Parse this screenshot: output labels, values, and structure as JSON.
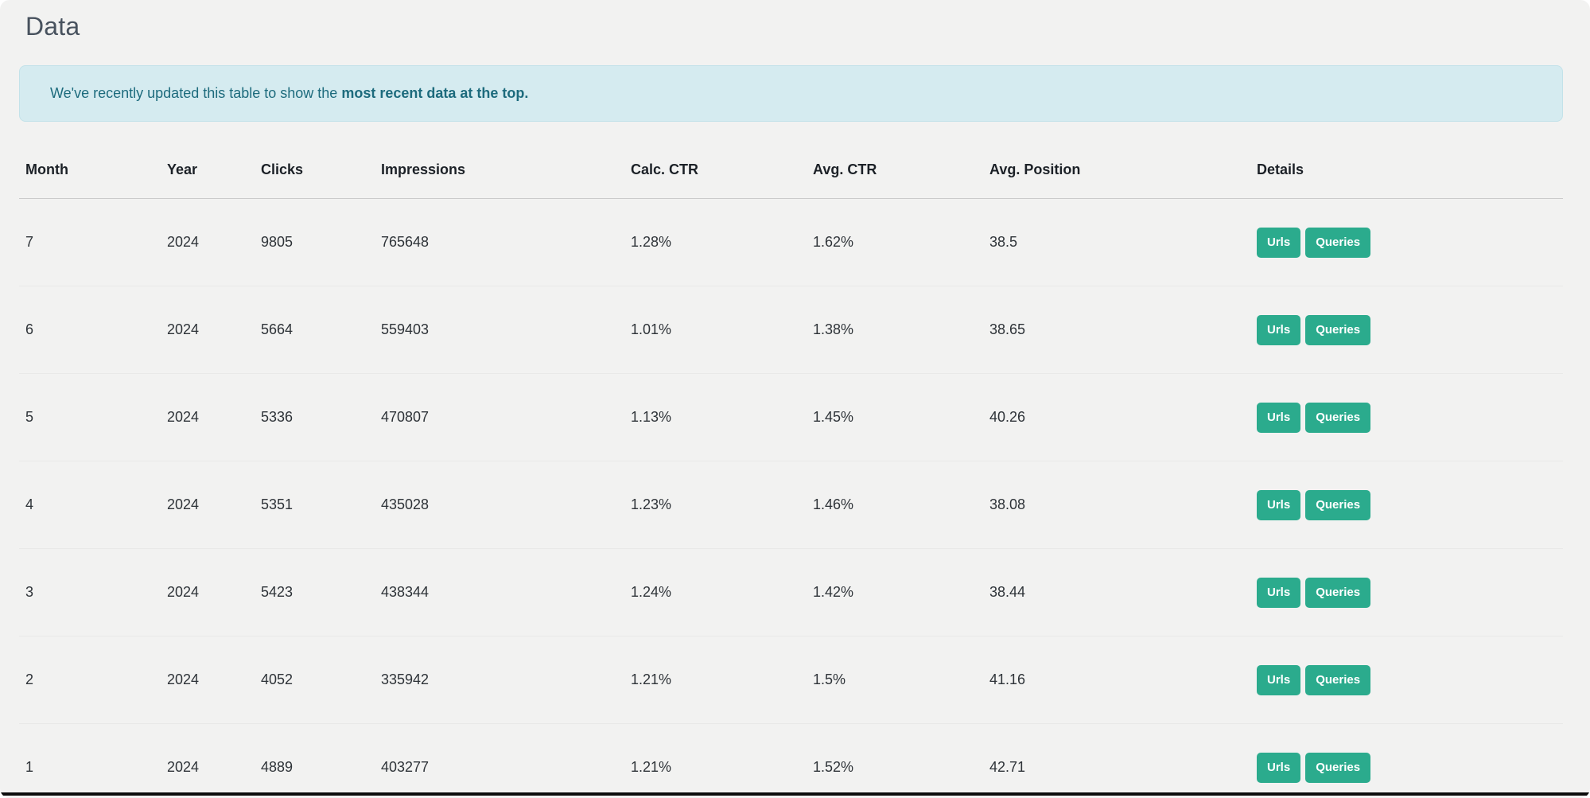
{
  "page": {
    "title": "Data",
    "background_color": "#f2f2f1"
  },
  "banner": {
    "text_normal": "We've recently updated this table to show the ",
    "text_bold": "most recent data at the top.",
    "background_color": "#d5ebf0",
    "border_color": "#c3e2e9",
    "text_color": "#1d6b7d"
  },
  "table": {
    "columns": [
      {
        "key": "month",
        "label": "Month"
      },
      {
        "key": "year",
        "label": "Year"
      },
      {
        "key": "clicks",
        "label": "Clicks"
      },
      {
        "key": "impressions",
        "label": "Impressions"
      },
      {
        "key": "calc_ctr",
        "label": "Calc. CTR"
      },
      {
        "key": "avg_ctr",
        "label": "Avg. CTR"
      },
      {
        "key": "avg_position",
        "label": "Avg. Position"
      },
      {
        "key": "details",
        "label": "Details"
      }
    ],
    "rows": [
      {
        "month": "7",
        "year": "2024",
        "clicks": "9805",
        "impressions": "765648",
        "calc_ctr": "1.28%",
        "avg_ctr": "1.62%",
        "avg_position": "38.5"
      },
      {
        "month": "6",
        "year": "2024",
        "clicks": "5664",
        "impressions": "559403",
        "calc_ctr": "1.01%",
        "avg_ctr": "1.38%",
        "avg_position": "38.65"
      },
      {
        "month": "5",
        "year": "2024",
        "clicks": "5336",
        "impressions": "470807",
        "calc_ctr": "1.13%",
        "avg_ctr": "1.45%",
        "avg_position": "40.26"
      },
      {
        "month": "4",
        "year": "2024",
        "clicks": "5351",
        "impressions": "435028",
        "calc_ctr": "1.23%",
        "avg_ctr": "1.46%",
        "avg_position": "38.08"
      },
      {
        "month": "3",
        "year": "2024",
        "clicks": "5423",
        "impressions": "438344",
        "calc_ctr": "1.24%",
        "avg_ctr": "1.42%",
        "avg_position": "38.44"
      },
      {
        "month": "2",
        "year": "2024",
        "clicks": "4052",
        "impressions": "335942",
        "calc_ctr": "1.21%",
        "avg_ctr": "1.5%",
        "avg_position": "41.16"
      },
      {
        "month": "1",
        "year": "2024",
        "clicks": "4889",
        "impressions": "403277",
        "calc_ctr": "1.21%",
        "avg_ctr": "1.52%",
        "avg_position": "42.71"
      }
    ],
    "details_buttons": [
      "Urls",
      "Queries"
    ],
    "button_color": "#2bab8d",
    "header_rule_color": "#cbcbcb",
    "row_rule_color": "#e9e9e8"
  }
}
